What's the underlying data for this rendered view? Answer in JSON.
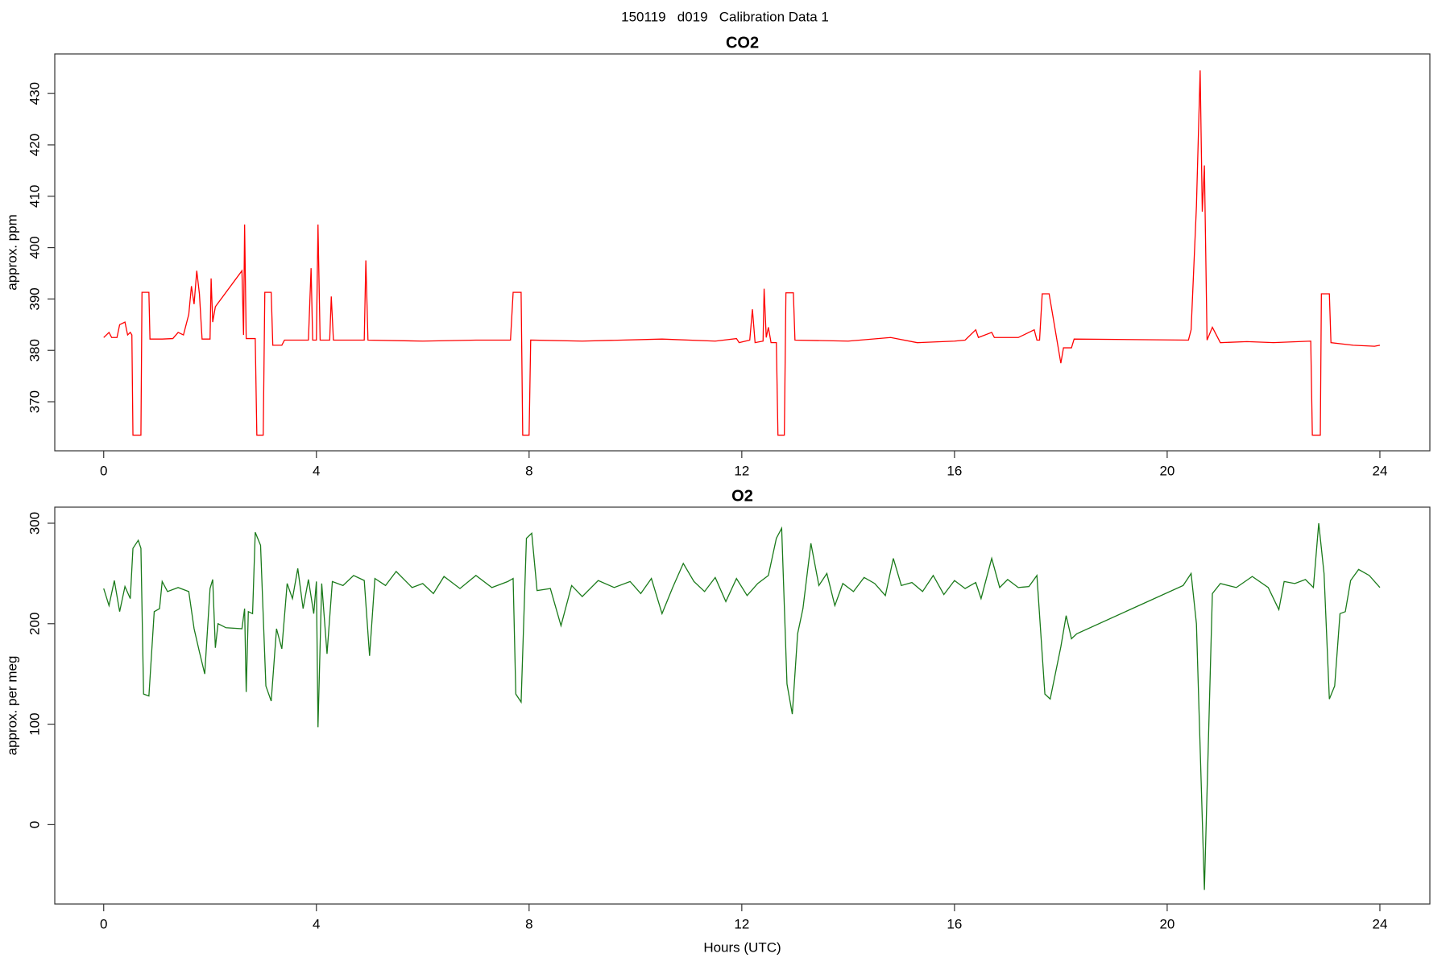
{
  "title": "150119   d019   Calibration Data 1",
  "chart_data": [
    {
      "type": "line",
      "title": "CO2",
      "y_label": "approx. ppm",
      "color": "#ff0000",
      "xlim": [
        -0.92,
        24.94
      ],
      "ylim": [
        360.45,
        437.7
      ],
      "xticks": [
        0,
        4,
        8,
        12,
        16,
        20,
        24
      ],
      "yticks": [
        370,
        380,
        390,
        400,
        410,
        420,
        430
      ],
      "x": [
        0,
        0.1,
        0.15,
        0.25,
        0.3,
        0.4,
        0.45,
        0.5,
        0.53,
        0.55,
        0.7,
        0.72,
        0.85,
        0.87,
        1.1,
        1.3,
        1.4,
        1.5,
        1.6,
        1.65,
        1.7,
        1.75,
        1.8,
        1.85,
        2.0,
        2.02,
        2.05,
        2.1,
        2.6,
        2.63,
        2.65,
        2.68,
        2.85,
        2.88,
        3.0,
        3.03,
        3.15,
        3.18,
        3.35,
        3.4,
        3.85,
        3.9,
        3.93,
        4.0,
        4.03,
        4.07,
        4.25,
        4.28,
        4.32,
        4.9,
        4.93,
        4.97,
        6,
        7,
        7.65,
        7.7,
        7.85,
        7.88,
        8.0,
        8.03,
        9,
        10.5,
        11.5,
        11.9,
        11.95,
        12.15,
        12.2,
        12.25,
        12.4,
        12.42,
        12.46,
        12.5,
        12.55,
        12.65,
        12.68,
        12.8,
        12.83,
        12.97,
        13.0,
        14,
        14.8,
        15.3,
        16,
        16.2,
        16.4,
        16.45,
        16.7,
        16.75,
        17.2,
        17.5,
        17.55,
        17.6,
        17.65,
        17.78,
        18.0,
        18.05,
        18.2,
        18.25,
        20.4,
        20.45,
        20.55,
        20.62,
        20.66,
        20.7,
        20.75,
        20.85,
        21.0,
        21.5,
        22.0,
        22.7,
        22.73,
        22.88,
        22.9,
        23.05,
        23.08,
        23.5,
        23.9,
        24
      ],
      "values": [
        382.5,
        383.5,
        382.5,
        382.5,
        385,
        385.5,
        383,
        383.5,
        383,
        363.5,
        363.5,
        391.3,
        391.3,
        382.2,
        382.2,
        382.3,
        383.5,
        383,
        387,
        392.5,
        389,
        395.5,
        391,
        382.2,
        382.2,
        394,
        385.5,
        388.5,
        395.5,
        383,
        404.5,
        382.3,
        382.3,
        363.5,
        363.5,
        391.3,
        391.3,
        381,
        381,
        382,
        382,
        396,
        382,
        382,
        404.5,
        382,
        382,
        390.5,
        382,
        382,
        397.5,
        382,
        381.8,
        382,
        382,
        391.3,
        391.3,
        363.5,
        363.5,
        382,
        381.8,
        382.2,
        381.8,
        382.3,
        381.5,
        382,
        388,
        381.5,
        381.8,
        392,
        382.5,
        384.5,
        381.5,
        381.5,
        363.5,
        363.5,
        391.2,
        391.2,
        382,
        381.8,
        382.5,
        381.5,
        381.8,
        382,
        384,
        382.5,
        383.5,
        382.5,
        382.5,
        384,
        382,
        382,
        391,
        391,
        377.5,
        380.5,
        380.5,
        382.2,
        382,
        384,
        408,
        434.5,
        407,
        416,
        382,
        384.5,
        381.5,
        381.7,
        381.5,
        381.8,
        363.5,
        363.5,
        391,
        391,
        381.5,
        381,
        380.8,
        381
      ]
    },
    {
      "type": "line",
      "title": "O2",
      "y_label": "approx. per meg",
      "x_label": "Hours (UTC)",
      "color": "#1a7a1a",
      "xlim": [
        -0.92,
        24.94
      ],
      "ylim": [
        -79,
        316
      ],
      "xticks": [
        0,
        4,
        8,
        12,
        16,
        20,
        24
      ],
      "yticks": [
        0,
        100,
        200,
        300
      ],
      "x": [
        0,
        0.1,
        0.2,
        0.3,
        0.4,
        0.5,
        0.55,
        0.65,
        0.7,
        0.75,
        0.85,
        0.95,
        1.05,
        1.1,
        1.2,
        1.4,
        1.6,
        1.7,
        1.8,
        1.9,
        2.0,
        2.05,
        2.1,
        2.15,
        2.3,
        2.6,
        2.65,
        2.68,
        2.72,
        2.8,
        2.85,
        2.95,
        3.05,
        3.15,
        3.25,
        3.35,
        3.45,
        3.55,
        3.65,
        3.75,
        3.85,
        3.95,
        4.0,
        4.03,
        4.1,
        4.2,
        4.3,
        4.5,
        4.7,
        4.9,
        5.0,
        5.1,
        5.3,
        5.5,
        5.8,
        6.0,
        6.2,
        6.4,
        6.7,
        7.0,
        7.3,
        7.6,
        7.7,
        7.75,
        7.85,
        7.95,
        8.05,
        8.15,
        8.4,
        8.6,
        8.8,
        9.0,
        9.3,
        9.6,
        9.9,
        10.1,
        10.3,
        10.5,
        10.7,
        10.9,
        11.1,
        11.3,
        11.5,
        11.7,
        11.9,
        12.1,
        12.3,
        12.5,
        12.65,
        12.75,
        12.85,
        12.95,
        13.05,
        13.15,
        13.3,
        13.45,
        13.6,
        13.75,
        13.9,
        14.1,
        14.3,
        14.5,
        14.7,
        14.85,
        15.0,
        15.2,
        15.4,
        15.6,
        15.8,
        16.0,
        16.2,
        16.4,
        16.5,
        16.7,
        16.85,
        17.0,
        17.2,
        17.4,
        17.55,
        17.7,
        17.8,
        18.0,
        18.1,
        18.2,
        18.3,
        20.3,
        20.45,
        20.55,
        20.7,
        20.85,
        21.0,
        21.3,
        21.6,
        21.9,
        22.1,
        22.2,
        22.4,
        22.6,
        22.75,
        22.85,
        22.95,
        23.05,
        23.15,
        23.25,
        23.35,
        23.45,
        23.6,
        23.8,
        24
      ],
      "values": [
        235,
        218,
        243,
        212,
        237,
        225,
        275,
        283,
        275,
        130,
        128,
        212,
        215,
        242,
        232,
        236,
        232,
        195,
        172,
        150,
        235,
        244,
        176,
        200,
        196,
        195,
        215,
        132,
        212,
        210,
        291,
        278,
        138,
        123,
        195,
        175,
        240,
        225,
        255,
        215,
        244,
        210,
        242,
        97,
        240,
        170,
        242,
        238,
        248,
        243,
        168,
        245,
        238,
        252,
        236,
        240,
        230,
        247,
        235,
        248,
        236,
        242,
        245,
        130,
        122,
        285,
        290,
        233,
        235,
        198,
        238,
        227,
        243,
        236,
        242,
        230,
        245,
        210,
        236,
        260,
        242,
        232,
        246,
        222,
        245,
        228,
        240,
        248,
        285,
        295,
        140,
        110,
        190,
        215,
        280,
        238,
        250,
        218,
        240,
        232,
        246,
        240,
        228,
        265,
        238,
        241,
        232,
        248,
        229,
        243,
        235,
        241,
        225,
        265,
        236,
        244,
        236,
        237,
        248,
        130,
        125,
        177,
        208,
        185,
        190,
        238,
        250,
        200,
        -65,
        230,
        240,
        236,
        247,
        236,
        214,
        242,
        240,
        244,
        236,
        300,
        250,
        125,
        138,
        210,
        212,
        243,
        254,
        248,
        236
      ]
    }
  ]
}
